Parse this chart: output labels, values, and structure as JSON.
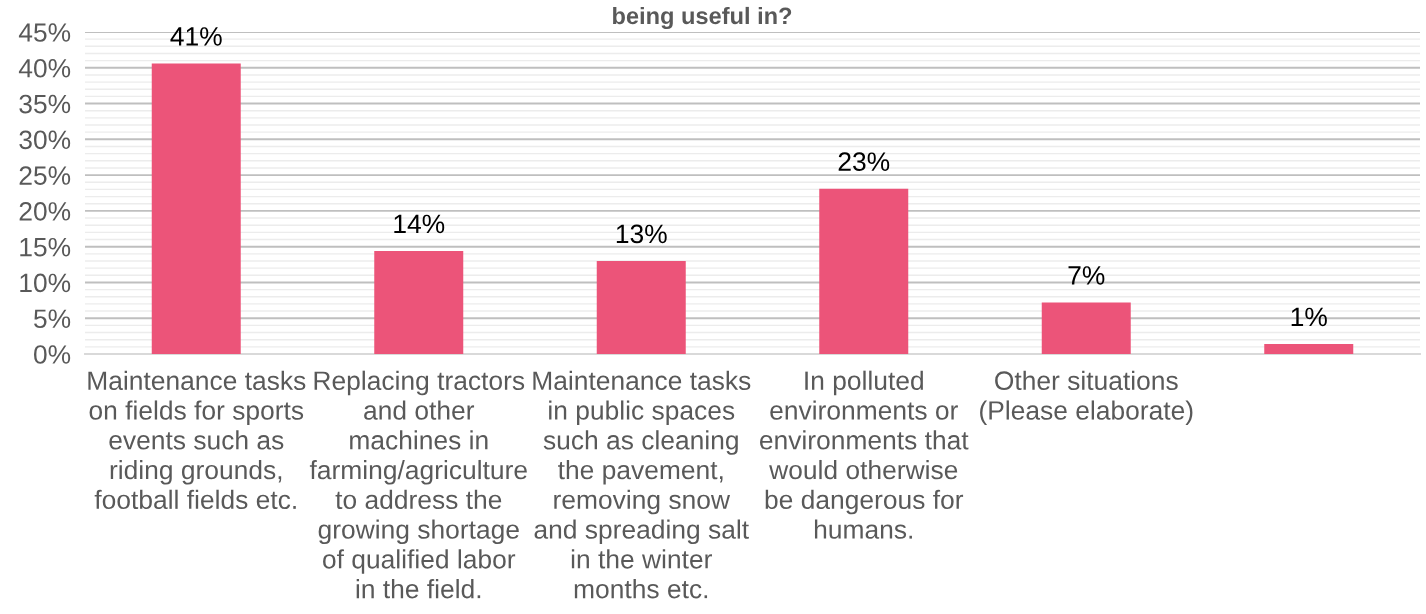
{
  "chart_data": {
    "type": "bar",
    "title": "being useful in?",
    "categories": [
      "Maintenance tasks\non fields for sports\nevents such as\nriding grounds,\nfootball fields etc.",
      "Replacing tractors\nand other\nmachines in\nfarming/agriculture\nto address the\ngrowing shortage\nof qualified labor\nin the field.",
      "Maintenance tasks\nin public spaces\nsuch as cleaning\nthe pavement,\nremoving snow\nand spreading salt\nin the winter\nmonths etc.",
      "In polluted\nenvironments or\nenvironments that\nwould otherwise\nbe dangerous for\nhumans.",
      "Other situations\n(Please elaborate)",
      null
    ],
    "values": [
      40.6,
      14.4,
      13.0,
      23.1,
      7.2,
      1.4
    ],
    "value_labels": [
      "41%",
      "14%",
      "13%",
      "23%",
      "7%",
      "1%"
    ],
    "color": "#ec5479",
    "ylim": [
      0,
      45
    ],
    "yticks": [
      {
        "value": 0,
        "label": "0%"
      },
      {
        "value": 5,
        "label": "5%"
      },
      {
        "value": 10,
        "label": "10%"
      },
      {
        "value": 15,
        "label": "15%"
      },
      {
        "value": 20,
        "label": "20%"
      },
      {
        "value": 25,
        "label": "25%"
      },
      {
        "value": 30,
        "label": "30%"
      },
      {
        "value": 35,
        "label": "35%"
      },
      {
        "value": 40,
        "label": "40%"
      },
      {
        "value": 45,
        "label": "45%"
      }
    ],
    "grid": "y"
  }
}
